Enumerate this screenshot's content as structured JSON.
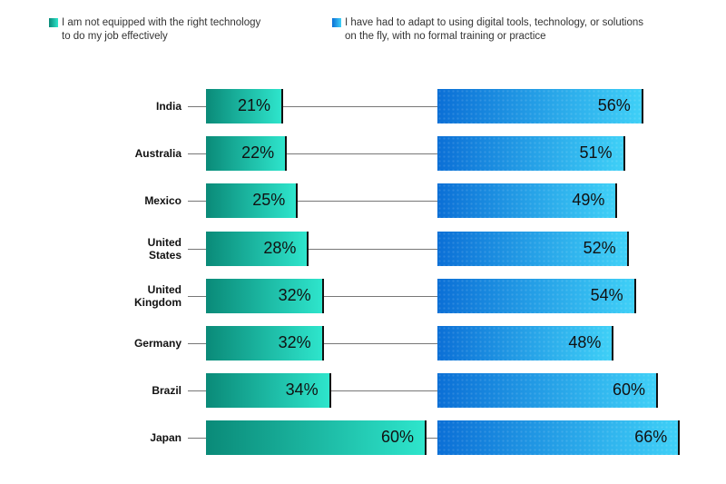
{
  "chart_data": {
    "type": "bar",
    "orientation": "horizontal",
    "categories": [
      "India",
      "Australia",
      "Mexico",
      "United States",
      "United Kingdom",
      "Germany",
      "Brazil",
      "Japan"
    ],
    "series": [
      {
        "name": "I am not equipped with the right technology to do my job effectively",
        "values": [
          21,
          22,
          25,
          28,
          32,
          32,
          34,
          60
        ],
        "color": "#12b5a0"
      },
      {
        "name": "I have had to adapt to using digital tools, technology, or solutions on the fly, with no formal training or practice",
        "values": [
          56,
          51,
          49,
          52,
          54,
          48,
          60,
          66
        ],
        "color": "#1a8fe6"
      }
    ],
    "value_suffix": "%",
    "legend_position": "top",
    "grid": false
  },
  "legend": {
    "a_line1": "I am not equipped with the right technology",
    "a_line2": "to do my job effectively",
    "b_line1": "I have had to adapt to using digital tools, technology, or solutions",
    "b_line2": "on the fly, with no formal training or practice"
  }
}
